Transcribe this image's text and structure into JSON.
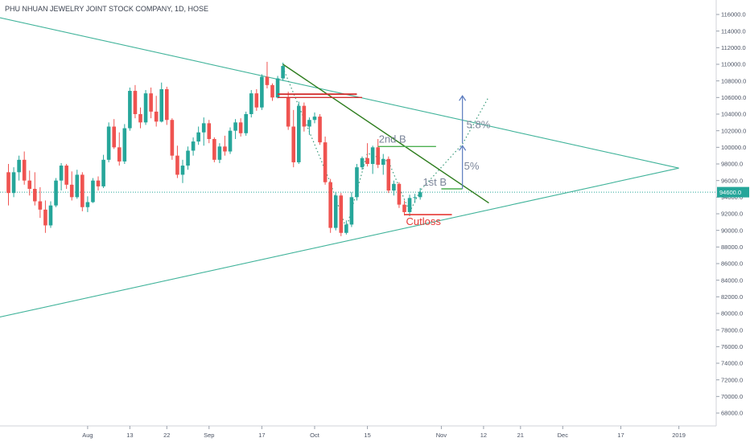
{
  "chart_data": {
    "type": "candlestick",
    "title": "PHU NHUAN JEWELRY JOINT STOCK COMPANY, 1D, HOSE",
    "y_axis": {
      "min": 66500,
      "max": 117800,
      "side": "right",
      "ticks": [
        68000,
        70000,
        72000,
        74000,
        76000,
        78000,
        80000,
        82000,
        84000,
        86000,
        88000,
        90000,
        92000,
        94000,
        96000,
        98000,
        100000,
        102000,
        104000,
        106000,
        108000,
        110000,
        112000,
        114000,
        116000
      ]
    },
    "x_axis": {
      "ticks": [
        {
          "label": "Aug",
          "day": 15
        },
        {
          "label": "13",
          "day": 23
        },
        {
          "label": "22",
          "day": 30
        },
        {
          "label": "Sep",
          "day": 38
        },
        {
          "label": "17",
          "day": 48
        },
        {
          "label": "Oct",
          "day": 58
        },
        {
          "label": "15",
          "day": 68
        },
        {
          "label": "Nov",
          "day": 82
        },
        {
          "label": "12",
          "day": 90
        },
        {
          "label": "21",
          "day": 97
        },
        {
          "label": "Dec",
          "day": 105
        },
        {
          "label": "17",
          "day": 116
        },
        {
          "label": "2019",
          "day": 127
        }
      ]
    },
    "last_price": {
      "value": 94600,
      "label": "94600.0",
      "color": "#26a69a"
    },
    "colors": {
      "up": "#26a69a",
      "down": "#ef5350",
      "channel": "#40b39a",
      "downtrend": "#2e7d1e",
      "resistance": "#d32f2f",
      "projection": "#5b7bbf",
      "text_gray": "#7b8599",
      "cutloss": "#e53935"
    },
    "candles": [
      [
        0,
        97000,
        98000,
        93000,
        94500
      ],
      [
        1,
        94500,
        97600,
        94000,
        97000
      ],
      [
        2,
        97000,
        99000,
        96000,
        98500
      ],
      [
        3,
        98500,
        99500,
        95500,
        96000
      ],
      [
        4,
        96000,
        97200,
        94200,
        95000
      ],
      [
        5,
        95000,
        97000,
        93000,
        93500
      ],
      [
        6,
        93500,
        95200,
        91500,
        92500
      ],
      [
        7,
        92500,
        93600,
        89700,
        90600
      ],
      [
        8,
        90600,
        93500,
        90300,
        93000
      ],
      [
        9,
        93000,
        96300,
        92800,
        96000
      ],
      [
        10,
        96000,
        98100,
        94800,
        97800
      ],
      [
        11,
        97800,
        98000,
        95000,
        95500
      ],
      [
        12,
        95500,
        97100,
        93600,
        94000
      ],
      [
        13,
        94000,
        97300,
        93800,
        96700
      ],
      [
        14,
        96700,
        97000,
        92300,
        92800
      ],
      [
        15,
        92800,
        94100,
        92200,
        93400
      ],
      [
        16,
        93400,
        96300,
        93300,
        96000
      ],
      [
        17,
        96000,
        96500,
        94800,
        95300
      ],
      [
        18,
        95300,
        99100,
        95100,
        98500
      ],
      [
        19,
        98500,
        103000,
        98200,
        102500
      ],
      [
        20,
        102500,
        103400,
        99800,
        100000
      ],
      [
        21,
        100000,
        101800,
        97800,
        98300
      ],
      [
        22,
        98300,
        102800,
        98000,
        102300
      ],
      [
        23,
        102300,
        107200,
        102000,
        106800
      ],
      [
        24,
        106800,
        107500,
        103500,
        104000
      ],
      [
        25,
        104000,
        104800,
        102300,
        103000
      ],
      [
        26,
        103000,
        106900,
        102700,
        106500
      ],
      [
        27,
        106500,
        107200,
        103500,
        104300
      ],
      [
        28,
        104300,
        106200,
        102500,
        103100
      ],
      [
        29,
        103100,
        107800,
        103000,
        107000
      ],
      [
        30,
        107000,
        107300,
        102700,
        103300
      ],
      [
        31,
        103300,
        103500,
        98500,
        99000
      ],
      [
        32,
        99000,
        100200,
        96300,
        96700
      ],
      [
        33,
        96700,
        98500,
        95700,
        97800
      ],
      [
        34,
        97800,
        100100,
        97300,
        99600
      ],
      [
        35,
        99600,
        101200,
        99000,
        100700
      ],
      [
        36,
        100700,
        102500,
        100300,
        101800
      ],
      [
        37,
        101800,
        103600,
        100200,
        102900
      ],
      [
        38,
        102900,
        103300,
        100500,
        101000
      ],
      [
        39,
        101000,
        101200,
        98200,
        98500
      ],
      [
        40,
        98500,
        100500,
        98100,
        100100
      ],
      [
        41,
        100100,
        101400,
        99000,
        99500
      ],
      [
        42,
        99500,
        102400,
        99200,
        102000
      ],
      [
        43,
        102000,
        103400,
        101000,
        103000
      ],
      [
        44,
        103000,
        103500,
        101300,
        101700
      ],
      [
        45,
        101700,
        104300,
        101400,
        104000
      ],
      [
        46,
        104000,
        106900,
        103600,
        106500
      ],
      [
        47,
        106500,
        107000,
        104400,
        104800
      ],
      [
        48,
        104800,
        108800,
        104500,
        108500
      ],
      [
        49,
        108500,
        110300,
        107100,
        107500
      ],
      [
        50,
        107500,
        107700,
        105600,
        106000
      ],
      [
        51,
        106000,
        108600,
        105900,
        108300
      ],
      [
        52,
        108300,
        110200,
        108000,
        109800
      ],
      [
        53,
        106000,
        106700,
        102100,
        102500
      ],
      [
        54,
        102500,
        104500,
        97600,
        98200
      ],
      [
        55,
        98200,
        105500,
        98000,
        105000
      ],
      [
        56,
        105000,
        105400,
        101900,
        102500
      ],
      [
        57,
        102500,
        103600,
        101500,
        103300
      ],
      [
        58,
        103300,
        104200,
        102900,
        103700
      ],
      [
        59,
        103700,
        104000,
        100300,
        100600
      ],
      [
        60,
        100600,
        101300,
        95500,
        95800
      ],
      [
        61,
        95800,
        96200,
        89700,
        90300
      ],
      [
        62,
        90300,
        94600,
        90000,
        94200
      ],
      [
        63,
        94200,
        94500,
        89300,
        89700
      ],
      [
        64,
        89700,
        91200,
        89500,
        90700
      ],
      [
        65,
        90700,
        94600,
        90400,
        94000
      ],
      [
        66,
        94000,
        98000,
        93600,
        97600
      ],
      [
        67,
        97600,
        98900,
        97300,
        98700
      ],
      [
        68,
        98700,
        100500,
        97700,
        98000
      ],
      [
        69,
        98000,
        100200,
        96800,
        100000
      ],
      [
        70,
        100000,
        101000,
        97500,
        97900
      ],
      [
        71,
        97900,
        99200,
        96700,
        98600
      ],
      [
        72,
        98600,
        98900,
        94500,
        94800
      ],
      [
        73,
        94800,
        96000,
        94200,
        95600
      ],
      [
        74,
        95600,
        95800,
        92700,
        93100
      ],
      [
        75,
        93100,
        93600,
        91800,
        92200
      ],
      [
        76,
        92200,
        94300,
        91700,
        93900
      ],
      [
        77,
        93900,
        94400,
        93300,
        94000
      ],
      [
        78,
        94000,
        95100,
        93700,
        94600
      ]
    ],
    "annotations": {
      "first_buy": "1st B",
      "second_buy": "2nd B",
      "pct_1": "5%",
      "pct_2": "5.8%",
      "cutloss": "Cutloss"
    },
    "trendlines": {
      "upper_channel": [
        [
          -20,
          118200
        ],
        [
          127,
          97500
        ]
      ],
      "lower_channel": [
        [
          -20,
          77000
        ],
        [
          127,
          97500
        ]
      ],
      "downtrend": [
        [
          52,
          110000
        ],
        [
          91,
          93300
        ]
      ],
      "resistance_1": [
        [
          51,
          106400
        ],
        [
          66,
          106400
        ]
      ],
      "resistance_2": [
        [
          51,
          106000
        ],
        [
          67,
          106000
        ]
      ],
      "second_buy_level": [
        [
          70,
          100100
        ],
        [
          81,
          100100
        ]
      ],
      "first_buy_level": [
        [
          82,
          95000
        ],
        [
          86,
          95000
        ]
      ],
      "cutloss_level": [
        [
          75,
          91900
        ],
        [
          84,
          91900
        ]
      ],
      "projection_arrow_1": [
        [
          86,
          95000
        ],
        [
          86,
          100200
        ]
      ],
      "projection_arrow_2": [
        [
          86,
          100500
        ],
        [
          86,
          106200
        ]
      ],
      "projection_path": [
        [
          52,
          109600
        ],
        [
          61,
          95700
        ],
        [
          64,
          90200
        ],
        [
          68,
          99300
        ],
        [
          72,
          98300
        ],
        [
          76,
          92200
        ],
        [
          78,
          94800
        ],
        [
          86,
          100400
        ],
        [
          91,
          106100
        ]
      ]
    }
  }
}
